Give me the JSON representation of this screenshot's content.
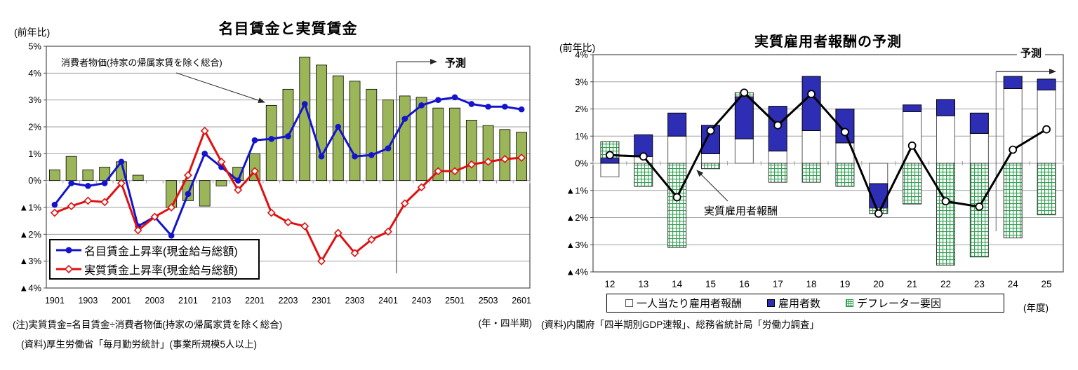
{
  "page": {
    "background": "#ffffff"
  },
  "chart_data": [
    {
      "type": "bar+line",
      "title": "名目賃金と実質賃金",
      "y_axis_label": "(前年比)",
      "unit_label": "(年・四半期)",
      "ylim": [
        -4,
        5
      ],
      "grid": true,
      "y_ticks": [
        "5%",
        "4%",
        "3%",
        "2%",
        "1%",
        "0%",
        "▲1%",
        "▲2%",
        "▲3%",
        "▲4%"
      ],
      "categories": [
        "1901",
        "1902",
        "1903",
        "1904",
        "2001",
        "2002",
        "2003",
        "2004",
        "2101",
        "2102",
        "2103",
        "2104",
        "2201",
        "2202",
        "2203",
        "2204",
        "2301",
        "2302",
        "2303",
        "2304",
        "2401",
        "2402",
        "2403",
        "2404",
        "2501",
        "2502",
        "2503",
        "2504",
        "2601"
      ],
      "x_ticks": [
        "1901",
        "1903",
        "2001",
        "2003",
        "2101",
        "2103",
        "2201",
        "2203",
        "2301",
        "2303",
        "2401",
        "2403",
        "2501",
        "2503",
        "2601"
      ],
      "bar_annotation": "消費者物価(持家の帰属家賃を除く総合)",
      "forecast_label": "予測",
      "forecast_boundary_after": "2401",
      "legend_position": "bottom-left-inside",
      "series": [
        {
          "name": "消費者物価(持家の帰属家賃を除く総合)",
          "type": "bar",
          "color": "#9bb659",
          "values": [
            0.4,
            0.9,
            0.4,
            0.5,
            0.7,
            0.2,
            0.0,
            -1.0,
            -0.75,
            -0.95,
            -0.2,
            0.5,
            1.0,
            2.8,
            3.4,
            4.6,
            4.3,
            3.9,
            3.7,
            3.4,
            3.0,
            3.15,
            3.1,
            2.7,
            2.7,
            2.25,
            2.05,
            1.9,
            1.8
          ]
        },
        {
          "name": "名目賃金上昇率(現金給与総額)",
          "type": "line",
          "marker": "filled-circle",
          "color": "#1414cc",
          "values": [
            -0.9,
            -0.1,
            -0.2,
            -0.1,
            0.7,
            -1.7,
            -1.35,
            -2.05,
            -0.5,
            1.0,
            0.5,
            0.0,
            1.5,
            1.55,
            1.65,
            2.85,
            0.9,
            2.0,
            0.9,
            0.95,
            1.2,
            2.3,
            2.8,
            3.0,
            3.1,
            2.85,
            2.75,
            2.75,
            2.65
          ]
        },
        {
          "name": "実質賃金上昇率(現金給与総額)",
          "type": "line",
          "marker": "open-diamond",
          "color": "#e01010",
          "values": [
            -1.2,
            -0.95,
            -0.75,
            -0.8,
            -0.1,
            -1.85,
            -1.35,
            -1.0,
            0.2,
            1.85,
            0.7,
            -0.35,
            0.35,
            -1.2,
            -1.55,
            -1.7,
            -3.0,
            -1.95,
            -2.7,
            -2.2,
            -1.9,
            -0.85,
            -0.25,
            0.35,
            0.35,
            0.6,
            0.7,
            0.8,
            0.85
          ]
        }
      ],
      "notes": [
        "(注)実質賃金=名目賃金÷消費者物価(持家の帰属家賃を除く総合)",
        "(資料)厚生労働省「毎月勤労統計」(事業所規模5人以上)"
      ]
    },
    {
      "type": "stacked-bar+line",
      "title": "実質雇用者報酬の予測",
      "y_axis_label": "(前年比)",
      "unit_label": "(年度)",
      "ylim": [
        -4,
        4
      ],
      "grid": true,
      "y_ticks": [
        "4%",
        "3%",
        "2%",
        "1%",
        "0%",
        "▲1%",
        "▲2%",
        "▲3%",
        "▲4%"
      ],
      "categories": [
        "12",
        "13",
        "14",
        "15",
        "16",
        "17",
        "18",
        "19",
        "20",
        "21",
        "22",
        "23",
        "24",
        "25"
      ],
      "x_ticks": [
        "12",
        "13",
        "14",
        "15",
        "16",
        "17",
        "18",
        "19",
        "20",
        "21",
        "22",
        "23",
        "24",
        "25"
      ],
      "line_annotation": "実質雇用者報酬",
      "forecast_label": "予測",
      "forecast_boundary_after": "23",
      "legend_position": "bottom-outside",
      "series": [
        {
          "name": "一人当たり雇用者報酬",
          "type": "bar",
          "style": "white",
          "color": "#ffffff",
          "values": [
            -0.5,
            0.25,
            1.0,
            0.35,
            0.9,
            0.45,
            1.2,
            0.75,
            -0.75,
            1.9,
            1.75,
            1.1,
            2.75,
            2.7
          ]
        },
        {
          "name": "雇用者数",
          "type": "bar",
          "style": "solid",
          "color": "#2e2eb5",
          "values": [
            0.2,
            0.8,
            0.85,
            1.05,
            1.55,
            1.65,
            2.0,
            1.25,
            -0.9,
            0.25,
            0.6,
            0.75,
            0.45,
            0.4
          ]
        },
        {
          "name": "デフレーター要因",
          "type": "bar",
          "style": "green-hatch",
          "color": "#2f9e4f",
          "values": [
            0.6,
            -0.85,
            -3.1,
            -0.2,
            0.15,
            -0.7,
            -0.7,
            -0.85,
            -0.2,
            -1.5,
            -3.75,
            -3.45,
            -2.75,
            -1.9
          ]
        },
        {
          "name": "実質雇用者報酬",
          "type": "line",
          "marker": "open-circle",
          "color": "#000000",
          "values": [
            0.3,
            0.25,
            -1.25,
            1.2,
            2.6,
            1.4,
            2.55,
            1.15,
            -1.85,
            0.65,
            -1.4,
            -1.6,
            0.5,
            1.25
          ]
        }
      ],
      "notes": [
        "(資料)内閣府「四半期別GDP速報」、総務省統計局「労働力調査」"
      ]
    }
  ]
}
